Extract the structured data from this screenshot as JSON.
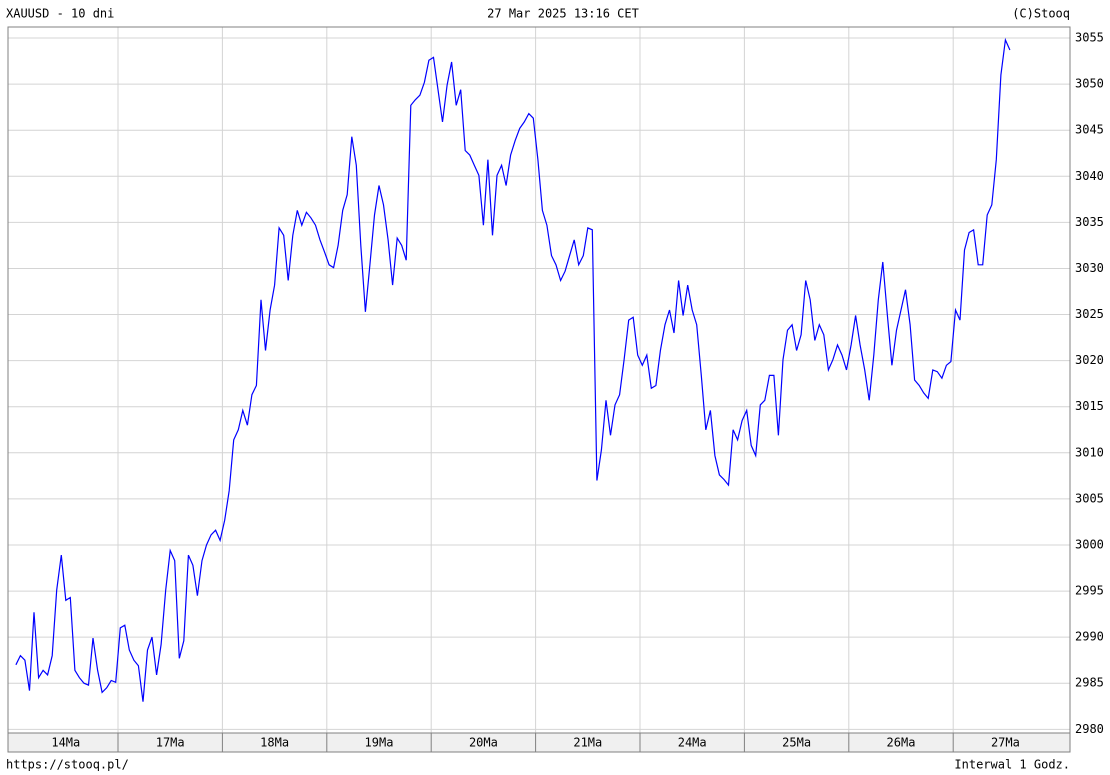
{
  "chart_data": {
    "type": "line",
    "title": "XAUUSD - 10 dni",
    "subtitle": "27 Mar 2025 13:16 CET",
    "credit": "(C)Stooq",
    "source": "https://stooq.pl/",
    "interval": "Interwal 1 Godz.",
    "color": "#0000ff",
    "grid": true,
    "ylim": [
      2979.6,
      3056.2
    ],
    "yticks": [
      2980,
      2985,
      2990,
      2995,
      3000,
      3005,
      3010,
      3015,
      3020,
      3025,
      3030,
      3035,
      3040,
      3045,
      3050,
      3055
    ],
    "days": [
      {
        "label": "14Ma",
        "values": [
          2987.0,
          2988.0,
          2987.5,
          2984.2,
          2992.7,
          2985.6,
          2986.4,
          2985.9,
          2988.0,
          2995.1,
          2998.9,
          2994.0,
          2994.3,
          2986.4,
          2985.6,
          2985.0,
          2984.8,
          2989.9,
          2986.4,
          2984.0,
          2984.5,
          2985.3,
          2985.1
        ]
      },
      {
        "label": "17Ma",
        "values": [
          2991.0,
          2991.3,
          2988.6,
          2987.5,
          2986.9,
          2983.0,
          2988.6,
          2990.0,
          2985.9,
          2989.2,
          2995.1,
          2999.4,
          2998.3,
          2987.7,
          2989.6,
          2998.9,
          2997.8,
          2994.5,
          2998.3,
          3000.0,
          3001.1,
          3001.6,
          3000.5
        ]
      },
      {
        "label": "18Ma",
        "values": [
          3002.7,
          3005.9,
          3011.4,
          3012.5,
          3014.6,
          3013.0,
          3016.3,
          3017.3,
          3026.6,
          3021.1,
          3025.5,
          3028.2,
          3034.4,
          3033.6,
          3028.7,
          3033.6,
          3036.3,
          3034.7,
          3036.1,
          3035.5,
          3034.7,
          3033.1,
          3031.8
        ]
      },
      {
        "label": "19Ma",
        "values": [
          3030.4,
          3030.1,
          3032.5,
          3036.3,
          3038.0,
          3044.3,
          3041.2,
          3032.5,
          3025.3,
          3030.4,
          3035.8,
          3039.0,
          3036.9,
          3033.1,
          3028.2,
          3033.3,
          3032.5,
          3030.9,
          3047.7,
          3048.3,
          3048.8,
          3050.2,
          3052.6
        ]
      },
      {
        "label": "20Ma",
        "values": [
          3052.9,
          3049.4,
          3045.9,
          3049.9,
          3052.4,
          3047.7,
          3049.4,
          3042.8,
          3042.3,
          3041.2,
          3040.1,
          3034.7,
          3041.8,
          3033.6,
          3040.1,
          3041.2,
          3039.0,
          3042.3,
          3043.9,
          3045.2,
          3045.9,
          3046.8,
          3046.3
        ]
      },
      {
        "label": "21Ma",
        "values": [
          3041.8,
          3036.3,
          3034.7,
          3031.4,
          3030.4,
          3028.7,
          3029.7,
          3031.4,
          3033.1,
          3030.4,
          3031.4,
          3034.4,
          3034.2,
          3007.0,
          3010.3,
          3015.7,
          3011.9,
          3015.2,
          3016.3,
          3020.1,
          3024.4,
          3024.7,
          3020.6
        ]
      },
      {
        "label": "24Ma",
        "values": [
          3019.5,
          3020.6,
          3017.0,
          3017.3,
          3021.1,
          3023.9,
          3025.5,
          3023.0,
          3028.7,
          3024.9,
          3028.2,
          3025.5,
          3023.9,
          3018.4,
          3012.5,
          3014.6,
          3009.7,
          3007.6,
          3007.1,
          3006.5,
          3012.5,
          3011.4,
          3013.5
        ]
      },
      {
        "label": "25Ma",
        "values": [
          3014.6,
          3010.8,
          3009.7,
          3015.2,
          3015.7,
          3018.4,
          3018.4,
          3011.9,
          3020.1,
          3023.3,
          3023.9,
          3021.1,
          3022.8,
          3028.7,
          3026.6,
          3022.2,
          3023.9,
          3022.8,
          3019.0,
          3020.1,
          3021.7,
          3020.6,
          3019.0
        ]
      },
      {
        "label": "26Ma",
        "values": [
          3021.7,
          3024.9,
          3021.7,
          3019.0,
          3015.7,
          3020.6,
          3026.6,
          3030.7,
          3024.9,
          3019.5,
          3023.3,
          3025.5,
          3027.7,
          3023.9,
          3017.9,
          3017.3,
          3016.5,
          3015.9,
          3019.0,
          3018.8,
          3018.1,
          3019.5,
          3019.9
        ]
      },
      {
        "label": "27Ma",
        "values": [
          3025.5,
          3024.4,
          3032.0,
          3033.9,
          3034.2,
          3030.4,
          3030.4,
          3035.8,
          3036.9,
          3041.8,
          3051.0,
          3054.8,
          3053.7
        ]
      }
    ]
  }
}
